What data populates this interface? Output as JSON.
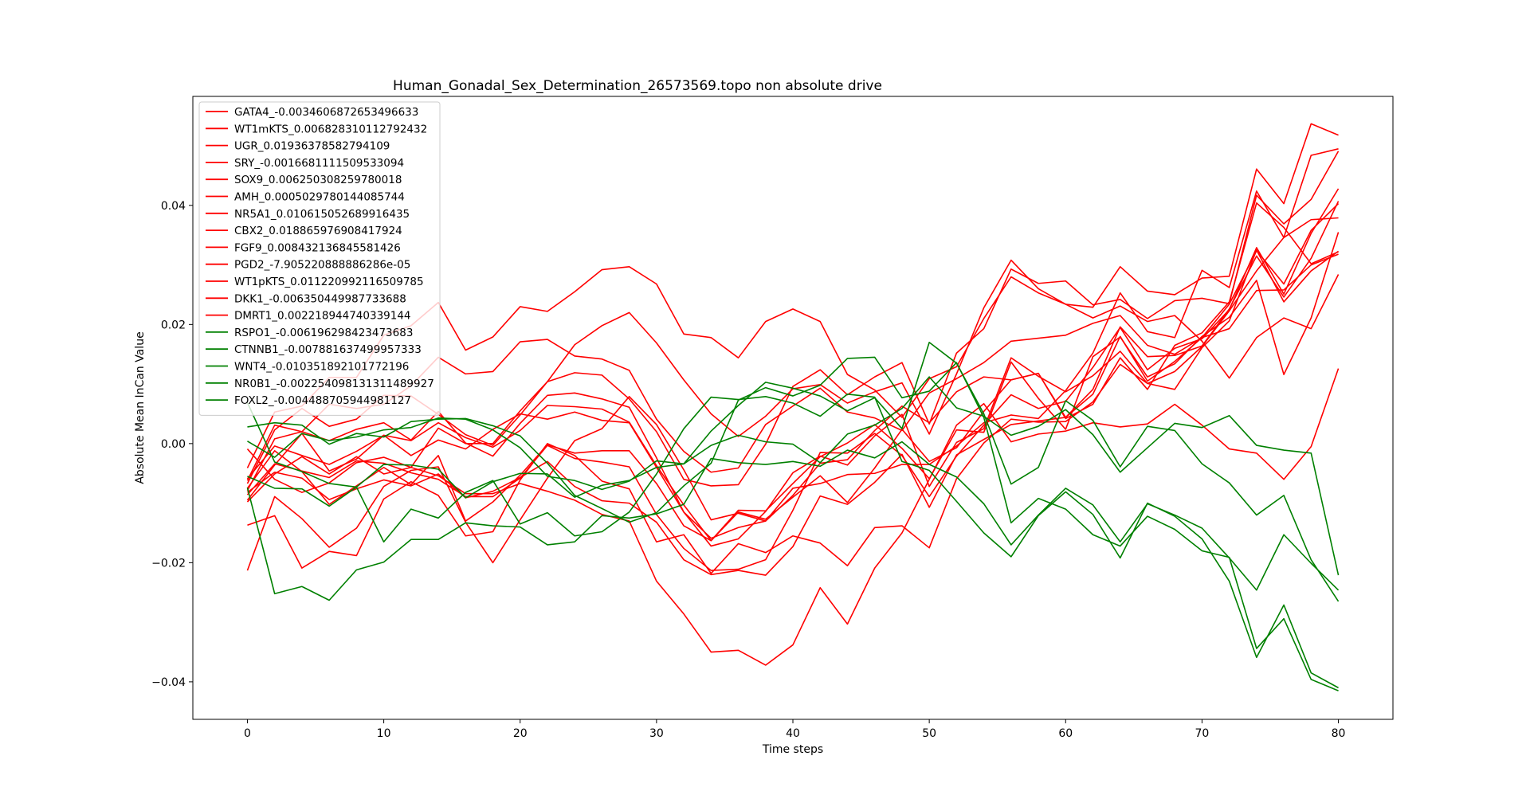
{
  "chart_data": {
    "type": "line",
    "title": "Human_Gonadal_Sex_Determination_26573569.topo non absolute drive",
    "xlabel": "Time steps",
    "ylabel": "Absolute Mean InCan Value",
    "xlim": [
      -4,
      84
    ],
    "ylim": [
      -0.0463,
      0.0583
    ],
    "xticks": [
      0,
      10,
      20,
      30,
      40,
      50,
      60,
      70,
      80
    ],
    "yticks": [
      -0.04,
      -0.02,
      0.0,
      0.02,
      0.04
    ],
    "ytick_labels": [
      "−0.04",
      "−0.02",
      "0.00",
      "0.02",
      "0.04"
    ],
    "legend_position": "upper-left",
    "colors": {
      "red": "#ff0000",
      "green": "#008000"
    },
    "x": [
      0,
      2,
      4,
      6,
      8,
      10,
      12,
      14,
      16,
      18,
      20,
      22,
      24,
      26,
      28,
      30,
      32,
      34,
      36,
      38,
      40,
      42,
      44,
      46,
      48,
      50,
      52,
      54,
      56,
      58,
      60,
      62,
      64,
      66,
      68,
      70,
      72,
      74,
      76,
      78,
      80
    ],
    "series": [
      {
        "name": "GATA4_-0.0034606872653496633",
        "color": "red",
        "values": [
          -0.0082,
          -0.0048,
          -0.0058,
          -0.0094,
          -0.0076,
          -0.0061,
          -0.0071,
          -0.0051,
          -0.0091,
          -0.008,
          -0.0057,
          -0.003,
          -0.0072,
          -0.0096,
          -0.01,
          -0.0132,
          -0.0195,
          -0.022,
          -0.0213,
          -0.0221,
          -0.0173,
          -0.0088,
          -0.0102,
          -0.0065,
          -0.0018,
          -0.0107,
          -0.0019,
          0.0007,
          0.0032,
          0.0038,
          0.0044,
          0.0091,
          0.0196,
          0.0146,
          0.0148,
          0.0164,
          0.0226,
          0.0315,
          0.0246,
          0.0311,
          0.0407
        ]
      },
      {
        "name": "WT1mKTS_0.006828310112792432",
        "color": "red",
        "values": [
          -0.0086,
          -0.0034,
          -0.0046,
          -0.0057,
          -0.0029,
          -0.0033,
          -0.0049,
          -0.006,
          -0.0089,
          -0.0089,
          -0.0058,
          -0.0003,
          -0.0025,
          -0.0031,
          -0.0039,
          -0.0119,
          -0.0176,
          -0.0213,
          -0.0211,
          -0.0195,
          -0.0112,
          -0.0015,
          -0.0016,
          0.0017,
          -0.002,
          -0.0089,
          -0.0021,
          0.0031,
          0.0082,
          0.0059,
          0.0071,
          0.0128,
          0.0195,
          0.0124,
          0.016,
          0.0176,
          0.0225,
          0.0329,
          0.0251,
          0.0353,
          0.0428
        ]
      },
      {
        "name": "UGR_0.01936378582794109",
        "color": "red",
        "values": [
          -0.0067,
          0.0023,
          0.0059,
          0.0029,
          0.0041,
          0.0081,
          0.008,
          0.0049,
          0.0015,
          -0.0003,
          0.0048,
          0.0104,
          0.0166,
          0.0198,
          0.022,
          0.0169,
          0.0107,
          0.005,
          0.0012,
          0.0046,
          0.0092,
          0.0099,
          0.0068,
          0.0087,
          0.0102,
          0.0016,
          0.0117,
          0.0228,
          0.0308,
          0.026,
          0.0234,
          0.0229,
          0.0297,
          0.0256,
          0.025,
          0.0278,
          0.0281,
          0.0461,
          0.0403,
          0.0537,
          0.0518
        ]
      },
      {
        "name": "SRY_-0.0016681111509533094",
        "color": "red",
        "values": [
          -0.0059,
          -0.0004,
          -0.002,
          -0.0035,
          -0.0013,
          0.0014,
          0.0005,
          0.0035,
          0.001,
          -0.0006,
          0.0022,
          0.0064,
          0.0062,
          0.0058,
          0.0036,
          -0.0037,
          -0.0103,
          -0.0163,
          -0.0115,
          -0.0127,
          -0.009,
          -0.0054,
          -0.0099,
          -0.0041,
          0.0024,
          -0.003,
          -0.0007,
          0.0054,
          0.0107,
          0.0118,
          0.0044,
          0.0083,
          0.018,
          0.0105,
          0.0138,
          0.0178,
          0.0234,
          0.0324,
          0.0268,
          0.0358,
          0.0403
        ]
      },
      {
        "name": "SOX9_0.006250308259780018",
        "color": "red",
        "values": [
          -0.0079,
          0.0008,
          0.002,
          0.0005,
          0.0024,
          0.0035,
          0.0006,
          0.0054,
          0.0001,
          -0.0021,
          0.0034,
          0.0081,
          0.0085,
          0.0075,
          0.0061,
          -0.0024,
          -0.0115,
          -0.0159,
          -0.0141,
          -0.013,
          -0.0087,
          -0.0033,
          -0.0027,
          0.0022,
          0.0063,
          0.0035,
          0.0087,
          0.0112,
          0.0107,
          0.0118,
          0.0042,
          0.0066,
          0.0144,
          0.0091,
          0.0165,
          0.0186,
          0.0238,
          0.0404,
          0.0363,
          0.0302,
          0.0322
        ]
      },
      {
        "name": "AMH_0.0005029780144085744",
        "color": "red",
        "values": [
          -0.0137,
          -0.0121,
          -0.0209,
          -0.0181,
          -0.0188,
          -0.0093,
          -0.0064,
          -0.0087,
          -0.0155,
          -0.0148,
          -0.0061,
          0.0,
          -0.002,
          -0.0063,
          -0.0076,
          -0.0165,
          -0.0153,
          -0.0218,
          -0.0168,
          -0.0183,
          -0.0155,
          -0.0167,
          -0.0205,
          -0.0141,
          -0.0138,
          -0.0175,
          -0.0059,
          0.0001,
          0.0041,
          0.0036,
          0.0037,
          0.007,
          0.0133,
          0.0101,
          0.0091,
          0.0161,
          0.0206,
          0.0325,
          0.0238,
          0.029,
          0.0323
        ]
      },
      {
        "name": "NR5A1_0.010615052689916435",
        "color": "red",
        "values": [
          -0.0098,
          -0.0051,
          -0.0022,
          -0.0051,
          -0.0022,
          -0.0051,
          -0.004,
          0.0026,
          0.0,
          0.0,
          0.0055,
          0.0104,
          0.0119,
          0.0115,
          0.0075,
          0.002,
          -0.006,
          -0.0071,
          -0.0069,
          -0.0001,
          0.0096,
          0.0124,
          0.0082,
          0.0112,
          0.0136,
          0.0033,
          0.0152,
          0.0193,
          0.0293,
          0.0269,
          0.0273,
          0.0233,
          0.0242,
          0.021,
          0.024,
          0.0244,
          0.0235,
          0.0417,
          0.0369,
          0.041,
          0.0491
        ]
      },
      {
        "name": "CBX2_0.018865976908417924",
        "color": "red",
        "values": [
          -0.0041,
          0.0053,
          0.0063,
          0.0111,
          0.0111,
          0.0182,
          0.0198,
          0.0237,
          0.0157,
          0.0179,
          0.023,
          0.0222,
          0.0255,
          0.0292,
          0.0297,
          0.0268,
          0.0184,
          0.0178,
          0.0144,
          0.0205,
          0.0226,
          0.0205,
          0.0116,
          0.009,
          0.0044,
          0.0109,
          0.0129,
          0.021,
          0.028,
          0.0253,
          0.0234,
          0.0211,
          0.0231,
          0.0205,
          0.0215,
          0.0172,
          0.011,
          0.0178,
          0.0211,
          0.0193,
          0.0284
        ]
      },
      {
        "name": "FGF9_0.008432136845581426",
        "color": "red",
        "values": [
          -0.0062,
          0.0031,
          0.002,
          0.0066,
          0.0059,
          0.0066,
          0.0097,
          0.0145,
          0.0117,
          0.0121,
          0.0171,
          0.0175,
          0.0147,
          0.0142,
          0.0123,
          0.0041,
          -0.0013,
          -0.0048,
          -0.0041,
          0.0032,
          0.0063,
          0.0093,
          0.0053,
          0.0043,
          0.0022,
          0.0085,
          0.0109,
          0.0136,
          0.0172,
          0.0177,
          0.0182,
          0.0202,
          0.0215,
          0.0165,
          0.015,
          0.0178,
          0.0193,
          0.0257,
          0.0258,
          0.03,
          0.0318
        ]
      },
      {
        "name": "PGD2_-7.905220888886286e-05",
        "color": "red",
        "values": [
          -0.0009,
          -0.006,
          -0.0082,
          -0.0066,
          -0.0032,
          -0.0023,
          -0.004,
          -0.0054,
          -0.0084,
          -0.0084,
          -0.0067,
          -0.008,
          -0.0095,
          -0.0119,
          -0.013,
          -0.0231,
          -0.0286,
          -0.035,
          -0.0347,
          -0.0372,
          -0.0338,
          -0.0242,
          -0.0303,
          -0.0209,
          -0.015,
          -0.006,
          0.0031,
          0.0067,
          0.0003,
          0.0016,
          0.0021,
          0.0035,
          0.0028,
          0.0033,
          0.0066,
          0.0031,
          -0.0009,
          -0.0016,
          -0.006,
          -0.0005,
          0.0126
        ]
      },
      {
        "name": "WT1pKTS_0.011220992116509785",
        "color": "red",
        "values": [
          -0.0213,
          -0.0089,
          -0.0126,
          -0.0174,
          -0.0142,
          -0.0072,
          -0.0045,
          -0.0039,
          -0.0132,
          -0.02,
          -0.0128,
          -0.0058,
          0.0005,
          0.0025,
          0.0079,
          0.0032,
          -0.0044,
          -0.0128,
          -0.0117,
          -0.013,
          -0.0075,
          -0.0067,
          -0.0052,
          -0.005,
          -0.0035,
          -0.0035,
          -0.0004,
          0.0035,
          0.0048,
          0.0042,
          0.0089,
          0.0152,
          0.0253,
          0.0188,
          0.0178,
          0.0291,
          0.0262,
          0.0424,
          0.0346,
          0.0484,
          0.0495
        ]
      },
      {
        "name": "DKK1_-0.006350449987733688",
        "color": "red",
        "values": [
          -0.0095,
          -0.0036,
          0.0017,
          -0.0046,
          -0.0026,
          0.0014,
          -0.002,
          0.0006,
          -0.0009,
          0.0024,
          0.005,
          0.0041,
          0.0053,
          0.0039,
          0.0035,
          -0.004,
          -0.0115,
          -0.0172,
          -0.016,
          -0.0114,
          -0.0049,
          -0.0021,
          -0.0036,
          0.0013,
          0.0049,
          -0.0072,
          0.0002,
          0.0025,
          0.0144,
          0.0113,
          0.0087,
          0.0114,
          0.0155,
          0.0101,
          0.0121,
          0.0163,
          0.0223,
          0.029,
          0.0346,
          0.0376,
          0.0379
        ]
      },
      {
        "name": "DMRT1_0.002218944740339144",
        "color": "red",
        "values": [
          -0.0075,
          -0.0012,
          -0.0047,
          -0.0102,
          -0.0071,
          -0.004,
          -0.0069,
          -0.002,
          -0.013,
          -0.0098,
          -0.0053,
          -0.0002,
          -0.0016,
          -0.0012,
          -0.0012,
          -0.0067,
          -0.0138,
          -0.0163,
          -0.0112,
          -0.0113,
          -0.0067,
          -0.0022,
          0.0001,
          0.0032,
          -0.0008,
          -0.0059,
          0.0023,
          0.0019,
          0.0137,
          0.0076,
          0.0024,
          0.0146,
          0.0179,
          0.0112,
          0.0134,
          0.018,
          0.0212,
          0.0274,
          0.0116,
          0.0211,
          0.0355
        ]
      },
      {
        "name": "RSPO1_-0.006196298423473683",
        "color": "green",
        "values": [
          -0.0055,
          -0.0075,
          -0.0076,
          -0.0105,
          -0.0073,
          -0.0035,
          -0.0036,
          -0.0043,
          -0.0091,
          -0.0064,
          -0.005,
          -0.0051,
          -0.009,
          -0.007,
          -0.0062,
          -0.004,
          -0.0034,
          -0.0003,
          0.0014,
          0.0003,
          -0.0001,
          -0.0032,
          0.0016,
          0.0031,
          0.0059,
          0.0112,
          0.006,
          0.0046,
          0.0014,
          0.0029,
          0.0057,
          0.0015,
          -0.0048,
          -0.0007,
          0.0034,
          0.0027,
          0.0047,
          -0.0003,
          -0.0011,
          -0.0016,
          -0.0221
        ]
      },
      {
        "name": "CTNNB1_-0.007881637499957333",
        "color": "green",
        "values": [
          -0.0074,
          -0.0252,
          -0.024,
          -0.0263,
          -0.0212,
          -0.0199,
          -0.0161,
          -0.0161,
          -0.0133,
          -0.0138,
          -0.014,
          -0.017,
          -0.0165,
          -0.0121,
          -0.0125,
          -0.0118,
          -0.0102,
          -0.0025,
          -0.0032,
          -0.0035,
          -0.003,
          -0.0038,
          -0.0011,
          -0.0024,
          0.0003,
          -0.0035,
          -0.0056,
          -0.0101,
          -0.017,
          -0.012,
          -0.0075,
          -0.0103,
          -0.0165,
          -0.0101,
          -0.012,
          -0.0142,
          -0.0192,
          -0.0246,
          -0.0153,
          -0.0201,
          -0.0246
        ]
      },
      {
        "name": "WNT4_-0.010351892101772196",
        "color": "green",
        "values": [
          0.0069,
          -0.0031,
          -0.0047,
          -0.0067,
          -0.0073,
          -0.0165,
          -0.011,
          -0.0125,
          -0.0082,
          -0.0062,
          -0.0135,
          -0.0116,
          -0.0155,
          -0.0148,
          -0.0115,
          -0.0051,
          0.0025,
          0.0078,
          0.0074,
          0.0079,
          0.0068,
          0.0046,
          0.0083,
          0.0078,
          -0.003,
          -0.0045,
          -0.0097,
          -0.015,
          -0.019,
          -0.0121,
          -0.0081,
          -0.0119,
          -0.0192,
          -0.01,
          -0.0122,
          -0.016,
          -0.0231,
          -0.0359,
          -0.0271,
          -0.0385,
          -0.041
        ]
      },
      {
        "name": "NR0B1_-0.002254098131311489927",
        "color": "green",
        "values": [
          0.0004,
          -0.0023,
          0.0017,
          0.0005,
          0.0011,
          0.0023,
          0.0027,
          0.0043,
          0.0041,
          0.0023,
          -0.0007,
          -0.0055,
          -0.0062,
          -0.0077,
          -0.0063,
          -0.0029,
          -0.0034,
          0.0021,
          0.0064,
          0.0103,
          0.0093,
          0.008,
          0.0055,
          0.0077,
          0.0025,
          0.017,
          0.0135,
          0.005,
          -0.0068,
          -0.004,
          0.0072,
          0.0039,
          -0.0039,
          0.0029,
          0.0022,
          -0.0034,
          -0.0066,
          -0.012,
          -0.0087,
          -0.0195,
          -0.0265
        ]
      },
      {
        "name": "FOXL2_-0.004488705944981127",
        "color": "green",
        "values": [
          0.0028,
          0.0035,
          0.0031,
          -0.0001,
          0.0017,
          0.0011,
          0.0037,
          0.0041,
          0.0042,
          0.003,
          0.0013,
          -0.0033,
          -0.0087,
          -0.0109,
          -0.0132,
          -0.0116,
          -0.0071,
          -0.0033,
          0.0073,
          0.0094,
          0.008,
          0.0098,
          0.0143,
          0.0145,
          0.0077,
          0.0088,
          0.0136,
          0.0044,
          -0.0133,
          -0.0092,
          -0.011,
          -0.0153,
          -0.0172,
          -0.0122,
          -0.0144,
          -0.018,
          -0.0191,
          -0.0344,
          -0.0294,
          -0.0396,
          -0.0415
        ]
      }
    ]
  }
}
